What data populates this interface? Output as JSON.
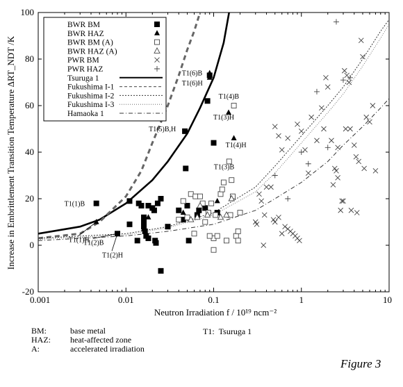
{
  "figure_label": "Figure 3",
  "abbreviations": [
    {
      "key": "BM:",
      "value": "base metal"
    },
    {
      "key": "HAZ:",
      "value": "heat-affected zone"
    },
    {
      "key": "A:",
      "value": "accelerated irradiation"
    }
  ],
  "t1_note": {
    "key": "T1:",
    "value": "Tsuruga 1"
  },
  "chart_data": {
    "type": "scatter",
    "x_axis": {
      "label": "Neutron Irradiation  f / 10¹⁹ ncm⁻²",
      "scale": "log",
      "range": [
        0.001,
        10
      ],
      "ticks": [
        0.001,
        0.01,
        0.1,
        1,
        10
      ],
      "tick_labels": [
        "0.001",
        "0.01",
        "0.1",
        "1",
        "10"
      ]
    },
    "y_axis": {
      "label": "Increase in Embrittlement Transition Temperature ΔRT_NDT /K",
      "range": [
        -20,
        100
      ],
      "ticks": [
        -20,
        0,
        20,
        40,
        60,
        80,
        100
      ],
      "tick_labels": [
        "-20",
        "0",
        "20",
        "40",
        "60",
        "80",
        "100"
      ]
    },
    "legend": {
      "placement": "top-left",
      "entries": [
        {
          "label": "BWR BM",
          "marker": "filled-square"
        },
        {
          "label": "BWR HAZ",
          "marker": "filled-triangle"
        },
        {
          "label": "BWR BM (A)",
          "marker": "open-square"
        },
        {
          "label": "BWR HAZ (A)",
          "marker": "open-triangle"
        },
        {
          "label": "PWR BM",
          "marker": "cross"
        },
        {
          "label": "PWR HAZ",
          "marker": "plus"
        },
        {
          "label": "Tsuruga 1",
          "line": "thick-solid"
        },
        {
          "label": "Fukushima I-1",
          "line": "dashed"
        },
        {
          "label": "Fukushima I-2",
          "line": "dotted"
        },
        {
          "label": "Fukushima I-3",
          "line": "dotted-fine"
        },
        {
          "label": "Hamaoka 1",
          "line": "dash-dot"
        }
      ]
    },
    "series": [
      {
        "name": "BWR BM",
        "marker": "filled-square",
        "points": [
          [
            0.0046,
            18
          ],
          [
            0.008,
            5
          ],
          [
            0.011,
            9
          ],
          [
            0.014,
            18
          ],
          [
            0.015,
            17
          ],
          [
            0.016,
            10
          ],
          [
            0.016,
            8
          ],
          [
            0.0165,
            6
          ],
          [
            0.017,
            4
          ],
          [
            0.018,
            3
          ],
          [
            0.018,
            17
          ],
          [
            0.02,
            16
          ],
          [
            0.021,
            15
          ],
          [
            0.0215,
            2
          ],
          [
            0.022,
            1
          ],
          [
            0.023,
            18
          ],
          [
            0.025,
            20
          ],
          [
            0.03,
            8
          ],
          [
            0.04,
            15
          ],
          [
            0.045,
            11
          ],
          [
            0.047,
            49
          ],
          [
            0.048,
            33
          ],
          [
            0.05,
            17
          ],
          [
            0.052,
            2
          ],
          [
            0.065,
            13
          ],
          [
            0.068,
            15
          ],
          [
            0.085,
            62
          ],
          [
            0.09,
            73
          ],
          [
            0.1,
            44
          ],
          [
            0.11,
            14
          ],
          [
            0.011,
            19
          ],
          [
            0.0135,
            2
          ],
          [
            0.016,
            12
          ],
          [
            0.025,
            -11
          ],
          [
            0.08,
            16
          ]
        ]
      },
      {
        "name": "BWR HAZ",
        "marker": "filled-triangle",
        "points": [
          [
            0.0046,
            10
          ],
          [
            0.016,
            7
          ],
          [
            0.018,
            12
          ],
          [
            0.09,
            72
          ],
          [
            0.09,
            74
          ],
          [
            0.11,
            19
          ],
          [
            0.148,
            57
          ],
          [
            0.17,
            46
          ],
          [
            0.045,
            14
          ]
        ]
      },
      {
        "name": "BWR BM (A)",
        "marker": "open-square",
        "points": [
          [
            0.04,
            11
          ],
          [
            0.045,
            19
          ],
          [
            0.05,
            12
          ],
          [
            0.055,
            22
          ],
          [
            0.062,
            21
          ],
          [
            0.07,
            21
          ],
          [
            0.075,
            18
          ],
          [
            0.08,
            10
          ],
          [
            0.087,
            14
          ],
          [
            0.094,
            18
          ],
          [
            0.1,
            3
          ],
          [
            0.105,
            13
          ],
          [
            0.11,
            4
          ],
          [
            0.12,
            22
          ],
          [
            0.125,
            24
          ],
          [
            0.13,
            27
          ],
          [
            0.14,
            2
          ],
          [
            0.15,
            36
          ],
          [
            0.16,
            28
          ],
          [
            0.165,
            21
          ],
          [
            0.17,
            60
          ],
          [
            0.18,
            4
          ],
          [
            0.19,
            6
          ],
          [
            0.155,
            13
          ],
          [
            0.06,
            5
          ],
          [
            0.1,
            -2
          ],
          [
            0.09,
            4
          ],
          [
            0.2,
            14
          ],
          [
            0.19,
            2
          ]
        ]
      },
      {
        "name": "BWR HAZ (A)",
        "marker": "open-triangle",
        "points": [
          [
            0.055,
            11
          ],
          [
            0.065,
            12
          ],
          [
            0.07,
            17
          ],
          [
            0.085,
            13
          ],
          [
            0.12,
            12
          ],
          [
            0.14,
            13
          ],
          [
            0.16,
            20
          ]
        ]
      },
      {
        "name": "PWR BM",
        "marker": "cross",
        "points": [
          [
            0.3,
            10
          ],
          [
            0.31,
            9
          ],
          [
            0.33,
            22
          ],
          [
            0.35,
            19
          ],
          [
            0.37,
            0
          ],
          [
            0.4,
            25
          ],
          [
            0.48,
            11
          ],
          [
            0.5,
            10
          ],
          [
            0.55,
            12
          ],
          [
            0.6,
            5
          ],
          [
            0.65,
            8
          ],
          [
            0.7,
            7
          ],
          [
            0.75,
            6
          ],
          [
            0.8,
            5
          ],
          [
            0.85,
            4
          ],
          [
            0.9,
            3
          ],
          [
            0.95,
            2
          ],
          [
            0.38,
            13
          ],
          [
            0.45,
            25
          ],
          [
            0.5,
            51
          ],
          [
            0.55,
            47
          ],
          [
            0.6,
            41
          ],
          [
            0.7,
            46
          ],
          [
            0.9,
            52
          ],
          [
            1.0,
            49
          ],
          [
            1.1,
            41
          ],
          [
            1.2,
            31
          ],
          [
            1.3,
            55
          ],
          [
            1.5,
            45
          ],
          [
            1.8,
            50
          ],
          [
            2.0,
            68
          ],
          [
            2.2,
            45
          ],
          [
            2.3,
            26
          ],
          [
            2.4,
            33
          ],
          [
            2.5,
            32
          ],
          [
            2.6,
            42
          ],
          [
            2.8,
            15
          ],
          [
            3.0,
            19
          ],
          [
            3.1,
            75
          ],
          [
            3.3,
            73
          ],
          [
            3.5,
            70
          ],
          [
            3.6,
            50
          ],
          [
            3.7,
            15
          ],
          [
            4.0,
            43
          ],
          [
            4.2,
            38
          ],
          [
            4.5,
            36
          ],
          [
            4.8,
            88
          ],
          [
            5.0,
            81
          ],
          [
            5.2,
            33
          ],
          [
            5.5,
            55
          ],
          [
            6.0,
            53
          ],
          [
            6.5,
            60
          ],
          [
            7.0,
            32
          ],
          [
            1.7,
            59
          ],
          [
            1.9,
            72
          ],
          [
            2.6,
            29
          ],
          [
            3.2,
            50
          ],
          [
            2.9,
            19
          ],
          [
            4.3,
            14
          ]
        ]
      },
      {
        "name": "PWR HAZ",
        "marker": "plus",
        "points": [
          [
            0.5,
            30
          ],
          [
            1.0,
            40
          ],
          [
            1.5,
            66
          ],
          [
            2.0,
            42
          ],
          [
            2.5,
            96
          ],
          [
            3.0,
            71
          ],
          [
            3.6,
            72
          ],
          [
            0.7,
            20
          ],
          [
            1.2,
            35
          ]
        ]
      }
    ],
    "curves": [
      {
        "name": "Tsuruga 1",
        "style": "thick-solid",
        "points": [
          [
            0.001,
            5
          ],
          [
            0.003,
            8
          ],
          [
            0.005,
            11
          ],
          [
            0.01,
            18
          ],
          [
            0.02,
            28
          ],
          [
            0.03,
            36
          ],
          [
            0.05,
            48
          ],
          [
            0.07,
            59
          ],
          [
            0.1,
            72
          ],
          [
            0.13,
            87
          ],
          [
            0.15,
            100
          ]
        ]
      },
      {
        "name": "Fukushima I-1",
        "style": "dashed",
        "points": [
          [
            0.001,
            3
          ],
          [
            0.003,
            5
          ],
          [
            0.005,
            10
          ],
          [
            0.01,
            21
          ],
          [
            0.015,
            32
          ],
          [
            0.02,
            44
          ],
          [
            0.03,
            60
          ],
          [
            0.04,
            73
          ],
          [
            0.05,
            84
          ],
          [
            0.06,
            92
          ],
          [
            0.07,
            100
          ]
        ]
      },
      {
        "name": "Fukushima I-2",
        "style": "dotted",
        "points": [
          [
            0.001,
            3
          ],
          [
            0.01,
            5
          ],
          [
            0.03,
            8
          ],
          [
            0.1,
            14
          ],
          [
            0.3,
            25
          ],
          [
            0.5,
            34
          ],
          [
            1,
            47
          ],
          [
            2,
            60
          ],
          [
            3,
            68
          ],
          [
            5,
            80
          ],
          [
            8,
            92
          ],
          [
            10,
            97
          ]
        ]
      },
      {
        "name": "Fukushima I-3",
        "style": "dotted-fine",
        "points": [
          [
            0.001,
            2.5
          ],
          [
            0.01,
            4.5
          ],
          [
            0.03,
            7.5
          ],
          [
            0.1,
            13
          ],
          [
            0.3,
            23
          ],
          [
            0.5,
            31
          ],
          [
            1,
            44
          ],
          [
            2,
            57
          ],
          [
            3,
            65
          ],
          [
            5,
            77
          ],
          [
            8,
            89
          ],
          [
            10,
            95
          ]
        ]
      },
      {
        "name": "Hamaoka 1",
        "style": "dash-dot",
        "points": [
          [
            0.001,
            2
          ],
          [
            0.01,
            4
          ],
          [
            0.03,
            6
          ],
          [
            0.1,
            9
          ],
          [
            0.3,
            15
          ],
          [
            0.5,
            20
          ],
          [
            1,
            27
          ],
          [
            2,
            36
          ],
          [
            3,
            43
          ],
          [
            5,
            51
          ],
          [
            8,
            59
          ],
          [
            10,
            63
          ]
        ]
      }
    ],
    "annotations": [
      {
        "text": "T1(6)B",
        "x": 0.09,
        "y": 73
      },
      {
        "text": "T1(6)H",
        "x": 0.09,
        "y": 72
      },
      {
        "text": "T1(5)B,H",
        "x": 0.047,
        "y": 49
      },
      {
        "text": "T1(4)B",
        "x": 0.17,
        "y": 60
      },
      {
        "text": "T1(3)H",
        "x": 0.148,
        "y": 57
      },
      {
        "text": "T1(4)H",
        "x": 0.17,
        "y": 46
      },
      {
        "text": "T1(3)B",
        "x": 0.15,
        "y": 36
      },
      {
        "text": "T1(1)B",
        "x": 0.0046,
        "y": 18
      },
      {
        "text": "T1(1)H",
        "x": 0.0046,
        "y": 10
      },
      {
        "text": "T1(2)B",
        "x": 0.008,
        "y": 5
      },
      {
        "text": "T1(2)H",
        "x": 0.008,
        "y": 5
      }
    ]
  }
}
